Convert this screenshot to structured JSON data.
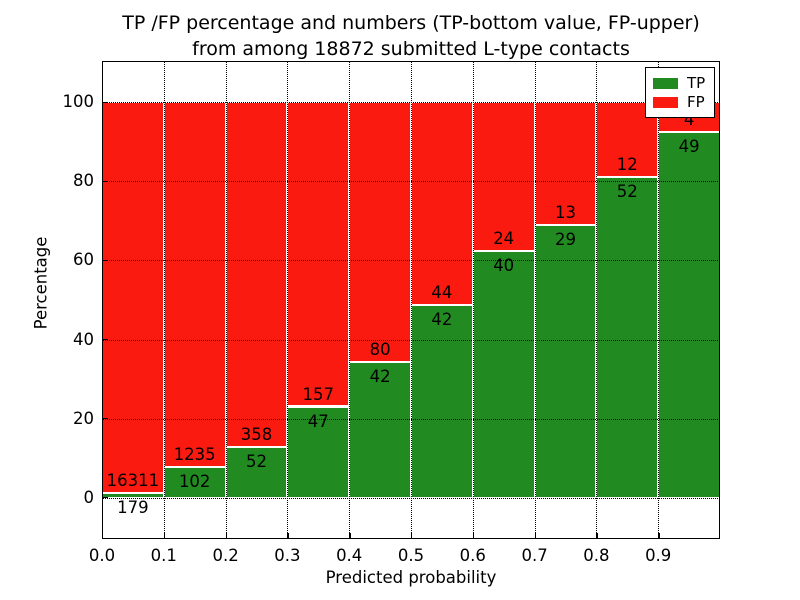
{
  "figure": {
    "title_line1": "TP /FP percentage and numbers (TP-bottom value, FP-upper)",
    "title_line2": "from among 18872 submitted L-type contacts"
  },
  "chart_data": {
    "type": "bar",
    "stacked": true,
    "normalized_to_percent": true,
    "title": "TP /FP percentage and numbers (TP-bottom value, FP-upper) from among 18872 submitted L-type contacts",
    "xlabel": "Predicted probability",
    "ylabel": "Percentage",
    "total_contacts": 18872,
    "xlim": [
      0.0,
      1.0
    ],
    "ylim": [
      -10.5,
      110.5
    ],
    "grid": true,
    "x_tick_values": [
      0.0,
      0.1,
      0.2,
      0.3,
      0.4,
      0.5,
      0.6,
      0.7,
      0.8,
      0.9
    ],
    "x_tick_labels": [
      "0.0",
      "0.1",
      "0.2",
      "0.3",
      "0.4",
      "0.5",
      "0.6",
      "0.7",
      "0.8",
      "0.9"
    ],
    "y_tick_values": [
      0,
      20,
      40,
      60,
      80,
      100
    ],
    "y_tick_labels": [
      "0",
      "20",
      "40",
      "60",
      "80",
      "100"
    ],
    "categories": [
      "0.0-0.1",
      "0.1-0.2",
      "0.2-0.3",
      "0.3-0.4",
      "0.4-0.5",
      "0.5-0.6",
      "0.6-0.7",
      "0.7-0.8",
      "0.8-0.9",
      "0.9-1.0"
    ],
    "bin_edges": [
      0.0,
      0.1,
      0.2,
      0.3,
      0.4,
      0.5,
      0.6,
      0.7,
      0.8,
      0.9,
      1.0
    ],
    "series": [
      {
        "name": "TP",
        "color": "#218a21",
        "values": [
          179,
          102,
          52,
          47,
          42,
          42,
          40,
          29,
          52,
          49
        ]
      },
      {
        "name": "FP",
        "color": "#fa1a10",
        "values": [
          16311,
          1235,
          358,
          157,
          80,
          44,
          24,
          13,
          12,
          4
        ]
      }
    ],
    "tp_percent_of_bin": [
      1.09,
      7.63,
      12.68,
      23.04,
      34.43,
      48.84,
      62.5,
      69.05,
      81.25,
      92.45
    ],
    "legend": {
      "position": "upper right",
      "entries": [
        {
          "label": "TP",
          "color": "#218a21"
        },
        {
          "label": "FP",
          "color": "#fa1a10"
        }
      ]
    },
    "grid_color": "#000000",
    "bar_edge_color": "#ffffff",
    "background_color": "#ffffff"
  }
}
